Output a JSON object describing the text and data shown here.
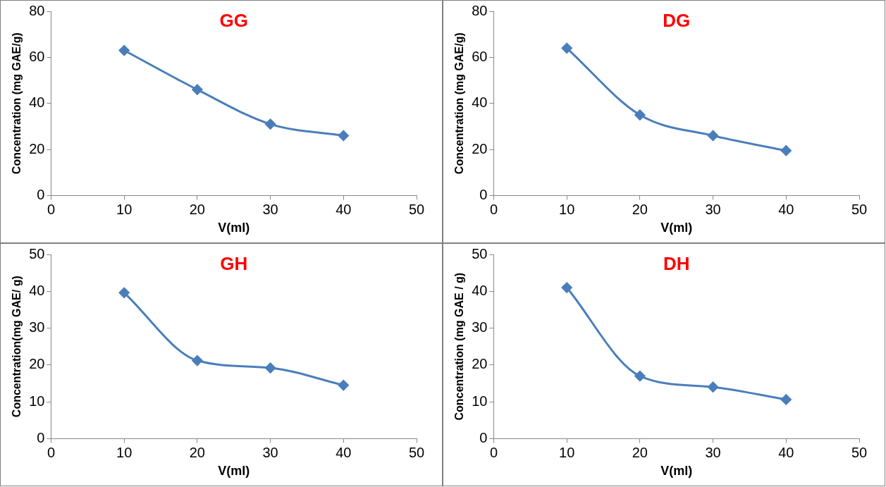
{
  "chart_data": [
    {
      "type": "line",
      "title": "GG",
      "xlabel": "V(ml)",
      "ylabel": "Concentration (mg GAE/g)",
      "x": [
        10,
        20,
        30,
        40
      ],
      "series": [
        {
          "color": "#4a7ebb",
          "values": [
            63,
            46,
            31,
            26
          ]
        }
      ],
      "xlim": [
        0,
        50
      ],
      "xticks": [
        0,
        10,
        20,
        30,
        40,
        50
      ],
      "ylim": [
        0,
        80
      ],
      "yticks": [
        0,
        20,
        40,
        60,
        80
      ],
      "grid": false,
      "legend": false,
      "marker": "diamond",
      "line_style": "solid"
    },
    {
      "type": "line",
      "title": "DG",
      "xlabel": "V(ml)",
      "ylabel": "Concentration (mg GAE/g)",
      "x": [
        10,
        20,
        30,
        40
      ],
      "series": [
        {
          "color": "#4a7ebb",
          "values": [
            64,
            35,
            26,
            19.5
          ]
        }
      ],
      "xlim": [
        0,
        50
      ],
      "xticks": [
        0,
        10,
        20,
        30,
        40,
        50
      ],
      "ylim": [
        0,
        80
      ],
      "yticks": [
        0,
        20,
        40,
        60,
        80
      ],
      "grid": false,
      "legend": false,
      "marker": "diamond",
      "line_style": "solid"
    },
    {
      "type": "line",
      "title": "GH",
      "xlabel": "V(ml)",
      "ylabel": "Concentration(mg GAE/ g)",
      "x": [
        10,
        20,
        30,
        40
      ],
      "series": [
        {
          "color": "#4a7ebb",
          "values": [
            39.6,
            21.2,
            19.2,
            14.5
          ]
        }
      ],
      "xlim": [
        0,
        50
      ],
      "xticks": [
        0,
        10,
        20,
        30,
        40,
        50
      ],
      "ylim": [
        0,
        50
      ],
      "yticks": [
        0,
        10,
        20,
        30,
        40,
        50
      ],
      "grid": false,
      "legend": false,
      "marker": "diamond",
      "line_style": "solid"
    },
    {
      "type": "line",
      "title": "DH",
      "xlabel": "V(ml)",
      "ylabel": "Concentration (mg GAE / g)",
      "x": [
        10,
        20,
        30,
        40
      ],
      "series": [
        {
          "color": "#4a7ebb",
          "values": [
            41,
            17,
            14,
            10.6
          ]
        }
      ],
      "xlim": [
        0,
        50
      ],
      "xticks": [
        0,
        10,
        20,
        30,
        40,
        50
      ],
      "ylim": [
        0,
        50
      ],
      "yticks": [
        0,
        10,
        20,
        30,
        40,
        50
      ],
      "grid": false,
      "legend": false,
      "marker": "diamond",
      "line_style": "solid"
    }
  ]
}
